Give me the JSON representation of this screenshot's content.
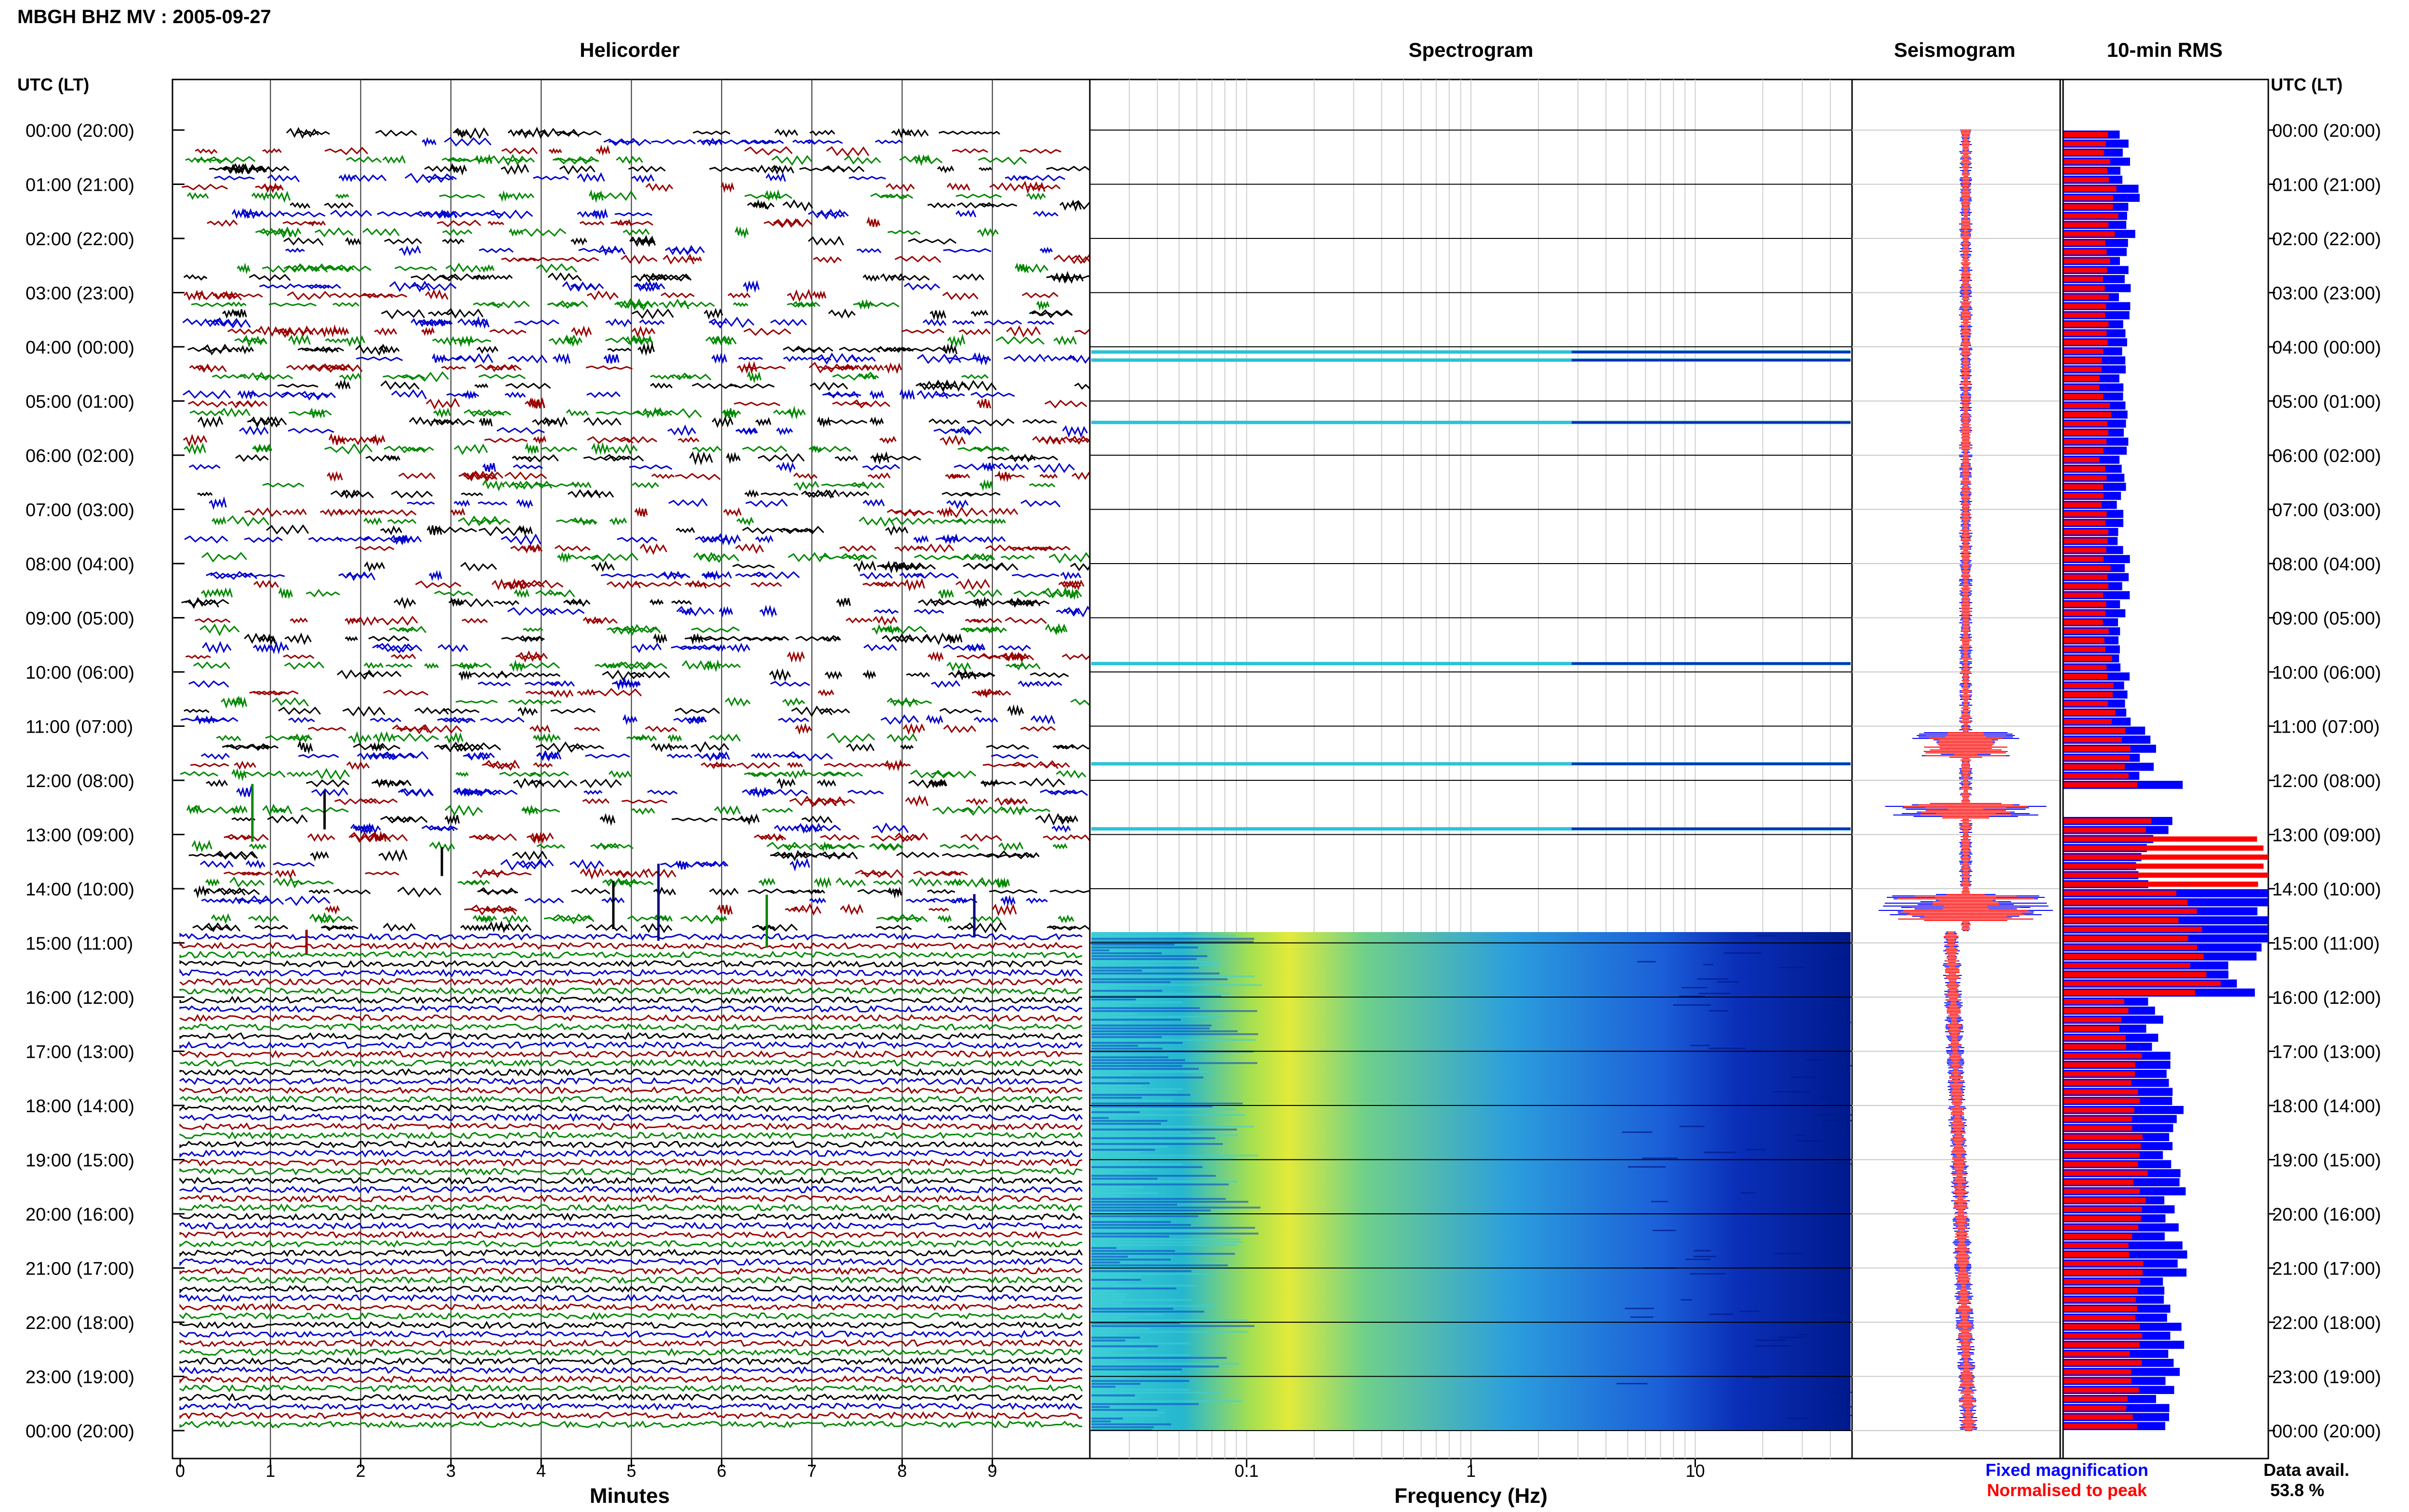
{
  "page_title": "MBGH BHZ MV : 2005-09-27",
  "panels": {
    "helicorder": "Helicorder",
    "spectrogram": "Spectrogram",
    "seismogram": "Seismogram",
    "rms": "10-min RMS"
  },
  "axis_header": "UTC (LT)",
  "hour_labels": [
    "00:00 (20:00)",
    "01:00 (21:00)",
    "02:00 (22:00)",
    "03:00 (23:00)",
    "04:00 (00:00)",
    "05:00 (01:00)",
    "06:00 (02:00)",
    "07:00 (03:00)",
    "08:00 (04:00)",
    "09:00 (05:00)",
    "10:00 (06:00)",
    "11:00 (07:00)",
    "12:00 (08:00)",
    "13:00 (09:00)",
    "14:00 (10:00)",
    "15:00 (11:00)",
    "16:00 (12:00)",
    "17:00 (13:00)",
    "18:00 (14:00)",
    "19:00 (15:00)",
    "20:00 (16:00)",
    "21:00 (17:00)",
    "22:00 (18:00)",
    "23:00 (19:00)",
    "00:00 (20:00)"
  ],
  "helicorder_xaxis": {
    "label": "Minutes",
    "ticks": [
      "0",
      "1",
      "2",
      "3",
      "4",
      "5",
      "6",
      "7",
      "8",
      "9"
    ],
    "range": [
      0,
      10
    ]
  },
  "spectrogram_xaxis": {
    "label": "Frequency (Hz)",
    "ticks": [
      "0.1",
      "1",
      "10"
    ],
    "scale": "log",
    "range": [
      0.02,
      50
    ]
  },
  "legend": {
    "fixed": "Fixed magnification",
    "normalised": "Normalised to peak",
    "fixed_color": "#0000ff",
    "normalised_color": "#ff0000"
  },
  "data_avail": {
    "label": "Data avail.",
    "value": "53.8 %"
  },
  "colors": {
    "trace_cycle": [
      "#000000",
      "#0000cc",
      "#990000",
      "#008800"
    ],
    "blue": "#0000ff",
    "red": "#ff0000"
  },
  "chart_data": [
    {
      "type": "line",
      "title": "Helicorder",
      "xlabel": "Minutes",
      "ylabel": "UTC (LT)",
      "xlim": [
        0,
        10
      ],
      "ylim": [
        0,
        24
      ],
      "grid": true,
      "gap_hours": [
        0,
        14.8
      ],
      "continuous_hours": [
        14.8,
        24
      ]
    },
    {
      "type": "heatmap",
      "title": "Spectrogram",
      "xlabel": "Frequency (Hz)",
      "x_scale": "log",
      "xlim": [
        0.02,
        50
      ],
      "peak_band_hz": [
        0.13,
        0.3
      ],
      "events_hours": [
        4.1,
        4.25,
        5.4,
        9.85,
        11.7,
        12.9
      ],
      "continuous_from_hour": 14.8
    },
    {
      "type": "bar",
      "title": "10-min RMS",
      "legend": "bottom",
      "rms_hourly_fixed": [
        0.3,
        0.35,
        0.3,
        0.3,
        0.28,
        0.3,
        0.28,
        0.3,
        0.3,
        0.3,
        0.32,
        0.42,
        0.55,
        0.4,
        1.0,
        0.9,
        0.45,
        0.5,
        0.55,
        0.55,
        0.55,
        0.55,
        0.55,
        0.5
      ],
      "rms_hourly_normalised": [
        0.22,
        0.25,
        0.22,
        0.22,
        0.2,
        0.22,
        0.2,
        0.22,
        0.22,
        0.22,
        0.24,
        0.3,
        0.4,
        0.98,
        0.62,
        0.7,
        0.3,
        0.35,
        0.38,
        0.38,
        0.36,
        0.38,
        0.36,
        0.34
      ]
    }
  ]
}
